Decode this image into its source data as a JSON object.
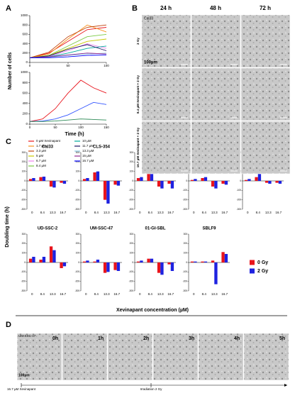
{
  "panel_a": {
    "label": "A",
    "ylabel": "Number of cells",
    "xlabel": "Time (h)"
  },
  "panel_b": {
    "label": "B",
    "columns": [
      "24 h",
      "48 h",
      "72 h"
    ],
    "rows": [
      "2 Gy",
      "8.4 µM Xevinapant + 2 Gy",
      "16.7 µM Xevinapant + 2 Gy"
    ],
    "cell_line": "Cal33",
    "scale": "100µm"
  },
  "panel_c": {
    "label": "C",
    "ylabel": "Doubling time (h)",
    "xlabel": "Xevinapant concentration (µM)"
  },
  "panel_d": {
    "label": "D",
    "cell_line": "UM-SSC-47",
    "frames": [
      "0h",
      "1h",
      "2h",
      "3h",
      "4h",
      "5h"
    ],
    "scale": "100µm",
    "treatment": "16.7 µM Xevinapant",
    "irradiation": "Irradiation 2 Gy"
  },
  "chart_data": [
    {
      "type": "line",
      "x": [
        0,
        25,
        50,
        75,
        100
      ],
      "xlim": [
        0,
        100
      ],
      "xticks": [
        0,
        50,
        100
      ],
      "ylim": [
        0,
        1000
      ],
      "yticks": [
        0,
        200,
        400,
        600,
        800,
        1000
      ],
      "series": [
        {
          "name": "0 µM Xevinapant",
          "color": "#e8141c",
          "values": [
            100,
            200,
            450,
            700,
            750
          ]
        },
        {
          "name": "1.7 µM",
          "color": "#f7931e",
          "values": [
            100,
            180,
            500,
            800,
            650
          ]
        },
        {
          "name": "3.3 µM",
          "color": "#c1440e",
          "values": [
            100,
            220,
            550,
            750,
            800
          ]
        },
        {
          "name": "5 µM",
          "color": "#c8c800",
          "values": [
            100,
            150,
            300,
            450,
            500
          ]
        },
        {
          "name": "6.7 µM",
          "color": "#ee82ee",
          "values": [
            100,
            130,
            250,
            400,
            300
          ]
        },
        {
          "name": "8.4 µM",
          "color": "#7ac943",
          "values": [
            100,
            150,
            350,
            550,
            600
          ]
        },
        {
          "name": "10 µM",
          "color": "#00a99d",
          "values": [
            100,
            120,
            200,
            300,
            350
          ]
        },
        {
          "name": "11.7 µM",
          "color": "#1b1464",
          "values": [
            100,
            140,
            280,
            380,
            250
          ]
        },
        {
          "name": "13.3 µM",
          "color": "#8ecae6",
          "values": [
            100,
            110,
            150,
            180,
            200
          ]
        },
        {
          "name": "15 µM",
          "color": "#93278f",
          "values": [
            100,
            120,
            160,
            200,
            180
          ]
        },
        {
          "name": "16.7 µM",
          "color": "#0000ff",
          "values": [
            100,
            100,
            120,
            150,
            160
          ]
        }
      ]
    },
    {
      "type": "line",
      "x": [
        0,
        25,
        50,
        75,
        100,
        125,
        150
      ],
      "xlim": [
        0,
        150
      ],
      "xticks": [
        0,
        50,
        100,
        150
      ],
      "ylim": [
        0,
        1000
      ],
      "yticks": [
        0,
        200,
        400,
        600,
        800,
        1000
      ],
      "series": [
        {
          "color": "#e8141c",
          "values": [
            50,
            100,
            300,
            600,
            850,
            700,
            600
          ]
        },
        {
          "color": "#3355ff",
          "values": [
            50,
            60,
            100,
            180,
            300,
            420,
            380
          ]
        },
        {
          "color": "#2e8b57",
          "values": [
            50,
            50,
            60,
            80,
            100,
            90,
            80
          ]
        }
      ]
    },
    {
      "type": "bar",
      "title": "Cal33",
      "categories": [
        "0",
        "8.4",
        "13.3",
        "16.7"
      ],
      "ylim": [
        -300,
        300
      ],
      "yticks": [
        -300,
        -200,
        -100,
        0,
        100,
        200,
        300
      ],
      "series": [
        {
          "name": "0 Gy",
          "color": "#e8141c",
          "values": [
            20,
            40,
            -60,
            -20
          ]
        },
        {
          "name": "2 Gy",
          "color": "#1e22e0",
          "values": [
            30,
            45,
            -70,
            -30
          ]
        }
      ]
    },
    {
      "type": "bar",
      "title": "CLS-354",
      "categories": [
        "0",
        "8.4",
        "13.3",
        "16.7"
      ],
      "ylim": [
        -300,
        300
      ],
      "yticks": [
        -300,
        -200,
        -100,
        0,
        100,
        200,
        300
      ],
      "series": [
        {
          "color": "#e8141c",
          "values": [
            20,
            90,
            -200,
            -40
          ]
        },
        {
          "color": "#1e22e0",
          "values": [
            30,
            100,
            -240,
            -50
          ]
        }
      ]
    },
    {
      "type": "bar",
      "title": "Detroit 562",
      "categories": [
        "0",
        "8.4",
        "13.3",
        "16.7"
      ],
      "ylim": [
        -300,
        300
      ],
      "yticks": [
        -300,
        -200,
        -100,
        0,
        100,
        200,
        300
      ],
      "series": [
        {
          "color": "#e8141c",
          "values": [
            30,
            80,
            -60,
            -30
          ]
        },
        {
          "color": "#1e22e0",
          "values": [
            40,
            110,
            -80,
            -80
          ]
        }
      ]
    },
    {
      "type": "bar",
      "title": "HSC4",
      "categories": [
        "0",
        "8.4",
        "13.3",
        "16.7"
      ],
      "ylim": [
        -300,
        300
      ],
      "yticks": [
        -300,
        -200,
        -100,
        0,
        100,
        200,
        300
      ],
      "series": [
        {
          "color": "#e8141c",
          "values": [
            10,
            30,
            -60,
            -30
          ]
        },
        {
          "color": "#1e22e0",
          "values": [
            20,
            40,
            -80,
            -40
          ]
        }
      ]
    },
    {
      "type": "bar",
      "title": "RPMI-2650",
      "categories": [
        "0",
        "8.4",
        "13.3",
        "16.7"
      ],
      "ylim": [
        -300,
        300
      ],
      "yticks": [
        -300,
        -200,
        -100,
        0,
        100,
        200,
        300
      ],
      "series": [
        {
          "color": "#e8141c",
          "values": [
            10,
            40,
            -20,
            -20
          ]
        },
        {
          "color": "#1e22e0",
          "values": [
            20,
            140,
            -30,
            -30
          ]
        }
      ]
    },
    {
      "type": "bar",
      "title": "UD-SSC-2",
      "categories": [
        "0",
        "8.4",
        "13.3",
        "16.7"
      ],
      "ylim": [
        -300,
        300
      ],
      "yticks": [
        -300,
        -200,
        -100,
        0,
        100,
        200,
        300
      ],
      "series": [
        {
          "color": "#e8141c",
          "values": [
            40,
            30,
            170,
            -60
          ]
        },
        {
          "color": "#1e22e0",
          "values": [
            60,
            60,
            130,
            -40
          ]
        }
      ]
    },
    {
      "type": "bar",
      "title": "UM-SSC-47",
      "categories": [
        "0",
        "8.4",
        "13.3",
        "16.7"
      ],
      "ylim": [
        -300,
        300
      ],
      "yticks": [
        -300,
        -200,
        -100,
        0,
        100,
        200,
        300
      ],
      "series": [
        {
          "color": "#e8141c",
          "values": [
            10,
            10,
            -110,
            -80
          ]
        },
        {
          "color": "#1e22e0",
          "values": [
            20,
            30,
            -100,
            -90
          ]
        }
      ]
    },
    {
      "type": "bar",
      "title": "01-GI-SBL",
      "categories": [
        "0",
        "8.4",
        "13.3",
        "16.7"
      ],
      "ylim": [
        -300,
        300
      ],
      "yticks": [
        -300,
        -200,
        -100,
        0,
        100,
        200,
        300
      ],
      "series": [
        {
          "color": "#e8141c",
          "values": [
            10,
            40,
            -110,
            -20
          ]
        },
        {
          "color": "#1e22e0",
          "values": [
            20,
            40,
            -130,
            -90
          ]
        }
      ]
    },
    {
      "type": "bar",
      "title": "SBLF9",
      "categories": [
        "0",
        "8.4",
        "13.3",
        "16.7"
      ],
      "ylim": [
        -300,
        300
      ],
      "yticks": [
        -300,
        -200,
        -100,
        0,
        100,
        200,
        300
      ],
      "series": [
        {
          "color": "#e8141c",
          "values": [
            10,
            10,
            20,
            110
          ]
        },
        {
          "color": "#1e22e0",
          "values": [
            10,
            10,
            -230,
            90
          ]
        }
      ]
    }
  ]
}
